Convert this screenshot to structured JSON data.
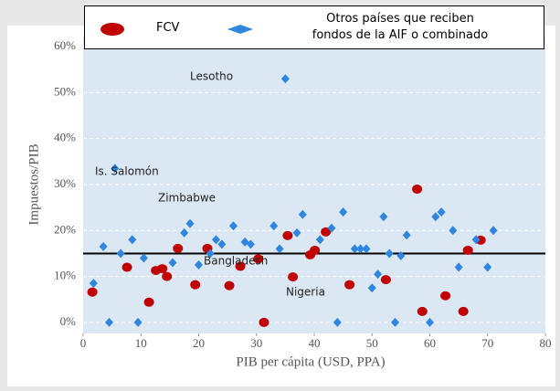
{
  "chart_data": {
    "type": "scatter",
    "xlabel": "PIB per cápita (USD, PPA)",
    "ylabel": "Impuestos/PIB",
    "xlim": [
      0,
      80
    ],
    "xticks": [
      0,
      10,
      20,
      30,
      40,
      50,
      60,
      70,
      80
    ],
    "ylim": [
      -2.4,
      62.2
    ],
    "yticks": [
      {
        "value": 0,
        "label": "0%"
      },
      {
        "value": 10,
        "label": "10%"
      },
      {
        "value": 20,
        "label": "20%"
      },
      {
        "value": 30,
        "label": "30%"
      },
      {
        "value": 40,
        "label": "40%"
      },
      {
        "value": 50,
        "label": "50%"
      },
      {
        "value": 60,
        "label": "60%"
      }
    ],
    "grid": true,
    "reference_line": 15,
    "series": [
      {
        "name": "FCV",
        "color": "#c00000",
        "marker": "circle",
        "x": [
          1.6,
          7.6,
          11.4,
          12.6,
          13.7,
          14.5,
          16.4,
          19.4,
          21.5,
          25.3,
          27.2,
          30.3,
          31.3,
          35.4,
          36.3,
          39.3,
          40.1,
          42,
          46.1,
          52.4,
          57.8,
          58.7,
          62.7,
          65.8,
          66.6,
          68.8
        ],
        "values": [
          6.6,
          12,
          4.4,
          11.3,
          11.7,
          10,
          16.1,
          8.2,
          16.1,
          8,
          12.2,
          13.8,
          0,
          18.9,
          9.9,
          14.7,
          15.7,
          19.7,
          8.2,
          9.3,
          29,
          2.4,
          5.8,
          2.4,
          15.7,
          17.9
        ]
      },
      {
        "name": "Otros países que reciben\nfondos  de la AIF o combinado",
        "color": "#2e86de",
        "marker": "diamond",
        "x": [
          1.8,
          3.5,
          4.5,
          5.5,
          6.5,
          8.5,
          9.5,
          10.5,
          15.5,
          17.5,
          18.5,
          20,
          22,
          23,
          24,
          26,
          28,
          29,
          33,
          34,
          35,
          37,
          38,
          41,
          43,
          44,
          45,
          47,
          48,
          49,
          50,
          51,
          52,
          53,
          54,
          55,
          56,
          60,
          61,
          62,
          64,
          65,
          68,
          70,
          71
        ],
        "values": [
          8.5,
          16.5,
          0,
          33.5,
          15,
          18,
          0,
          14,
          13,
          19.5,
          21.5,
          12.5,
          15,
          18,
          17,
          21,
          17.5,
          17,
          21,
          16,
          53,
          19.5,
          23.5,
          18,
          20.5,
          0,
          24,
          16,
          16,
          16,
          7.5,
          10.5,
          23,
          15,
          0,
          14.5,
          19,
          0,
          23,
          24,
          20,
          12,
          18,
          12,
          20
        ]
      }
    ],
    "annotations": [
      "Lesotho",
      "Is. Salomón",
      "Zimbabwe",
      "Bangladesh",
      "Nigeria"
    ]
  }
}
